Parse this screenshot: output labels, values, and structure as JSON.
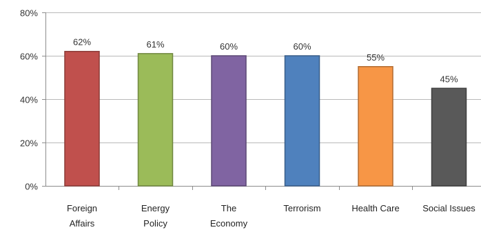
{
  "chart_data": {
    "type": "bar",
    "title": "",
    "xlabel": "",
    "ylabel": "",
    "categories": [
      [
        "Foreign",
        "Affairs"
      ],
      [
        "Energy",
        "Policy"
      ],
      [
        "The",
        "Economy"
      ],
      [
        "Terrorism"
      ],
      [
        "Health Care"
      ],
      [
        "Social Issues"
      ]
    ],
    "values": [
      62,
      61,
      60,
      60,
      55,
      45
    ],
    "data_labels": [
      "62%",
      "61%",
      "60%",
      "60%",
      "55%",
      "45%"
    ],
    "colors": [
      "#c0504d",
      "#9bbb59",
      "#8064a2",
      "#4f81bd",
      "#f79646",
      "#595959"
    ],
    "ylim": [
      0,
      80
    ],
    "yticks": [
      0,
      20,
      40,
      60,
      80
    ],
    "ytick_labels": [
      "0%",
      "20%",
      "40%",
      "60%",
      "80%"
    ],
    "grid": true,
    "legend": "none"
  }
}
